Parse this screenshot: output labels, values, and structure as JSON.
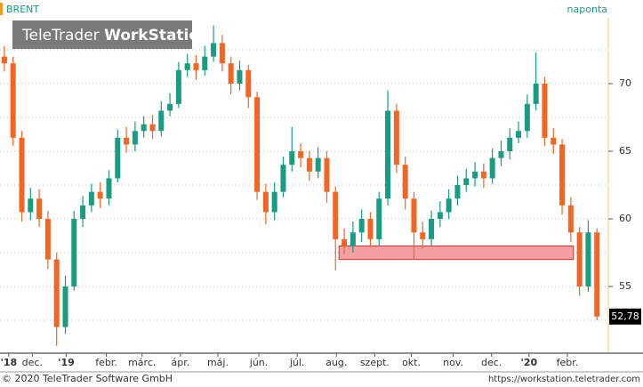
{
  "chart_data": {
    "type": "candlestick",
    "title": "BRENT",
    "interval": "naponta",
    "logo": {
      "brand": "TeleTrader",
      "product": "WorkStation"
    },
    "footer_left": "© 2020 TeleTrader Software GmbH",
    "footer_right": "https://workstation.teletrader.com",
    "up_color": "#1a9c82",
    "down_color": "#f26522",
    "open": [
      72,
      71.5,
      66,
      60.5,
      61.5,
      60,
      57,
      52,
      55,
      60,
      61,
      62,
      61.5,
      63,
      66,
      65.5,
      66.5,
      67,
      66.5,
      68,
      68.5,
      71,
      71.5,
      71,
      72,
      73,
      71.5,
      70,
      71,
      69,
      62,
      60.5,
      62,
      64,
      65,
      64.5,
      63.5,
      64.5,
      62,
      58.5,
      58,
      59,
      60,
      58.5,
      61.5,
      68,
      64,
      61.5,
      59,
      58.5,
      60,
      60.5,
      61.5,
      62.5,
      63,
      63.5,
      63,
      64.5,
      65,
      66,
      66.5,
      68.5,
      70,
      66,
      65.5,
      61,
      59,
      55,
      59
    ],
    "high": [
      72.8,
      72,
      66.5,
      62.3,
      62.2,
      60.6,
      57.5,
      55.8,
      60.6,
      61.7,
      62.6,
      62.7,
      63.6,
      66.6,
      66.8,
      67.2,
      67.6,
      67.7,
      68.7,
      69.3,
      71.6,
      72.2,
      72.1,
      72.8,
      74.3,
      73.6,
      72,
      71.7,
      71.4,
      69.4,
      62.6,
      62.7,
      64.6,
      66.8,
      65.6,
      65,
      65.3,
      65,
      62.4,
      59.3,
      59.8,
      60.7,
      60.5,
      62,
      69.5,
      68.5,
      64.6,
      62,
      59.8,
      60.6,
      61.3,
      62.2,
      63.2,
      63.7,
      64.2,
      64.1,
      65.2,
      65.8,
      66.7,
      67.2,
      69.2,
      72.3,
      70.5,
      66.7,
      65.9,
      61.6,
      59.4,
      59.9,
      59.3
    ],
    "low": [
      70.9,
      65.4,
      59.8,
      59.9,
      59.4,
      56.3,
      50.6,
      51.5,
      54.7,
      59.4,
      60.5,
      60.8,
      61,
      62.7,
      64.9,
      65,
      66,
      65.9,
      66.1,
      67.6,
      68.2,
      70.5,
      70.3,
      70.6,
      71.6,
      70.9,
      69.2,
      69.5,
      68.2,
      61.4,
      59.6,
      59.9,
      61.6,
      63.5,
      63.8,
      62.8,
      63,
      61.2,
      56.2,
      57.4,
      57.5,
      58.3,
      57.9,
      58,
      61,
      63.4,
      60.7,
      57,
      57.8,
      58,
      59.4,
      60,
      61,
      62,
      62.4,
      62.3,
      62.6,
      63.9,
      64.4,
      65.6,
      66,
      68,
      65.4,
      64.8,
      60.3,
      58.3,
      54.3,
      54.6,
      52.5
    ],
    "close": [
      71.5,
      66,
      60.5,
      61.5,
      60,
      57,
      52,
      55,
      60,
      61,
      62,
      61.5,
      63,
      66,
      65.5,
      66.5,
      67,
      66.5,
      68,
      68.5,
      71,
      71.5,
      71,
      72,
      73,
      71.5,
      70,
      71,
      69,
      62,
      60.5,
      62,
      64,
      65,
      64.5,
      63.5,
      64.5,
      62,
      58.5,
      58,
      59,
      60,
      58.5,
      61.5,
      68,
      64,
      61.5,
      59,
      58.5,
      60,
      60.5,
      61.5,
      62.5,
      63,
      63.5,
      63,
      64.5,
      65,
      66,
      66.5,
      68.5,
      70,
      66,
      65.5,
      61,
      59,
      55,
      59,
      52.78
    ],
    "last_price": {
      "value": 52.78,
      "label": "52,78"
    },
    "highlight": {
      "x": [
        38.9,
        65.8
      ],
      "y": [
        57,
        58
      ],
      "color": "#f4a0a0"
    },
    "xlim": [
      0,
      69.7
    ],
    "xticks": [
      {
        "value": 1.0,
        "label": "'18"
      },
      {
        "value": 3.7,
        "label": "dec."
      },
      {
        "value": 7.6,
        "label": "'19"
      },
      {
        "value": 12.2,
        "label": "febr."
      },
      {
        "value": 16.3,
        "label": "márc."
      },
      {
        "value": 20.7,
        "label": "ápr."
      },
      {
        "value": 25,
        "label": "máj."
      },
      {
        "value": 29.7,
        "label": "jún."
      },
      {
        "value": 34.1,
        "label": "júl."
      },
      {
        "value": 38.6,
        "label": "aug."
      },
      {
        "value": 43,
        "label": "szept."
      },
      {
        "value": 47.2,
        "label": "okt."
      },
      {
        "value": 52,
        "label": "nov."
      },
      {
        "value": 56.4,
        "label": "dec."
      },
      {
        "value": 60.7,
        "label": "'20"
      },
      {
        "value": 65.1,
        "label": "febr."
      }
    ],
    "ylim": [
      50.07,
      74.87
    ],
    "yticks": [
      55,
      60,
      65,
      70
    ],
    "minor_yticks": [
      52.5,
      57.5,
      62.5,
      67.5,
      72.5
    ],
    "grid": true
  }
}
